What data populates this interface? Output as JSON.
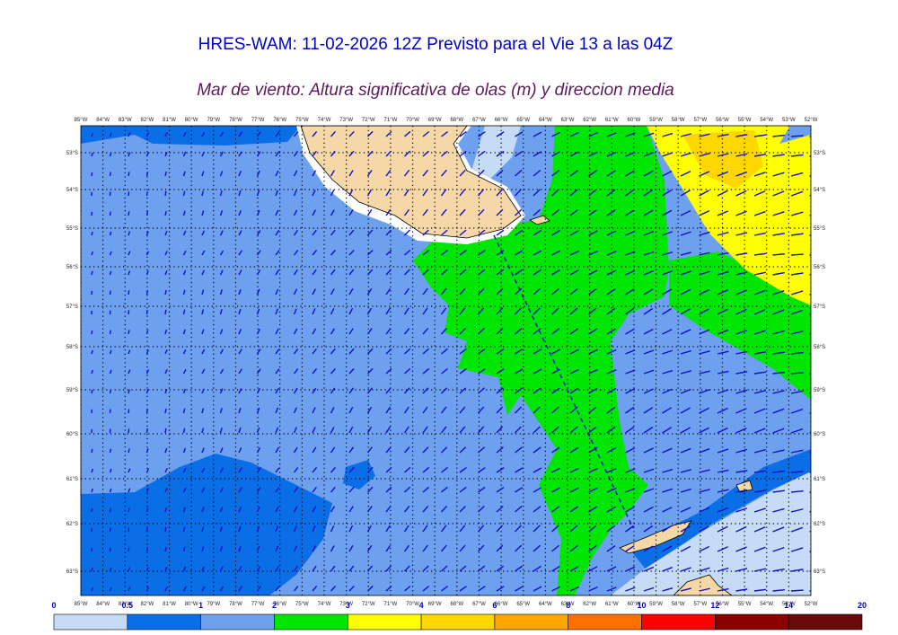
{
  "header": {
    "title": "HRES-WAM: 11-02-2026 12Z Previsto para el Vie 13 a las 04Z",
    "subtitle": "Mar de viento: Altura significativa de olas (m) y direccion media"
  },
  "map": {
    "longitude_labels": [
      "85°W",
      "84°W",
      "83°W",
      "82°W",
      "81°W",
      "80°W",
      "79°W",
      "78°W",
      "77°W",
      "76°W",
      "75°W",
      "74°W",
      "73°W",
      "72°W",
      "71°W",
      "70°W",
      "69°W",
      "68°W",
      "67°W",
      "66°W",
      "65°W",
      "64°W",
      "63°W",
      "62°W",
      "61°W",
      "60°W",
      "59°W",
      "58°W",
      "57°W",
      "56°W",
      "55°W",
      "54°W",
      "53°W",
      "52°W"
    ],
    "latitude_labels": [
      "53°S",
      "54°S",
      "55°S",
      "56°S",
      "57°S",
      "58°S",
      "59°S",
      "60°S",
      "61°S",
      "62°S",
      "63°S"
    ]
  },
  "legend": {
    "labels": [
      0,
      0.5,
      1,
      2,
      3,
      4,
      6,
      8,
      10,
      12,
      14,
      20
    ],
    "colors": [
      "#c6dbf5",
      "#0a6ee6",
      "#6ea0f0",
      "#00e600",
      "#ffff00",
      "#ffd700",
      "#ffa500",
      "#ff7000",
      "#ff0000",
      "#8b0000",
      "#6a0a0a",
      "#3c3c3c"
    ]
  }
}
